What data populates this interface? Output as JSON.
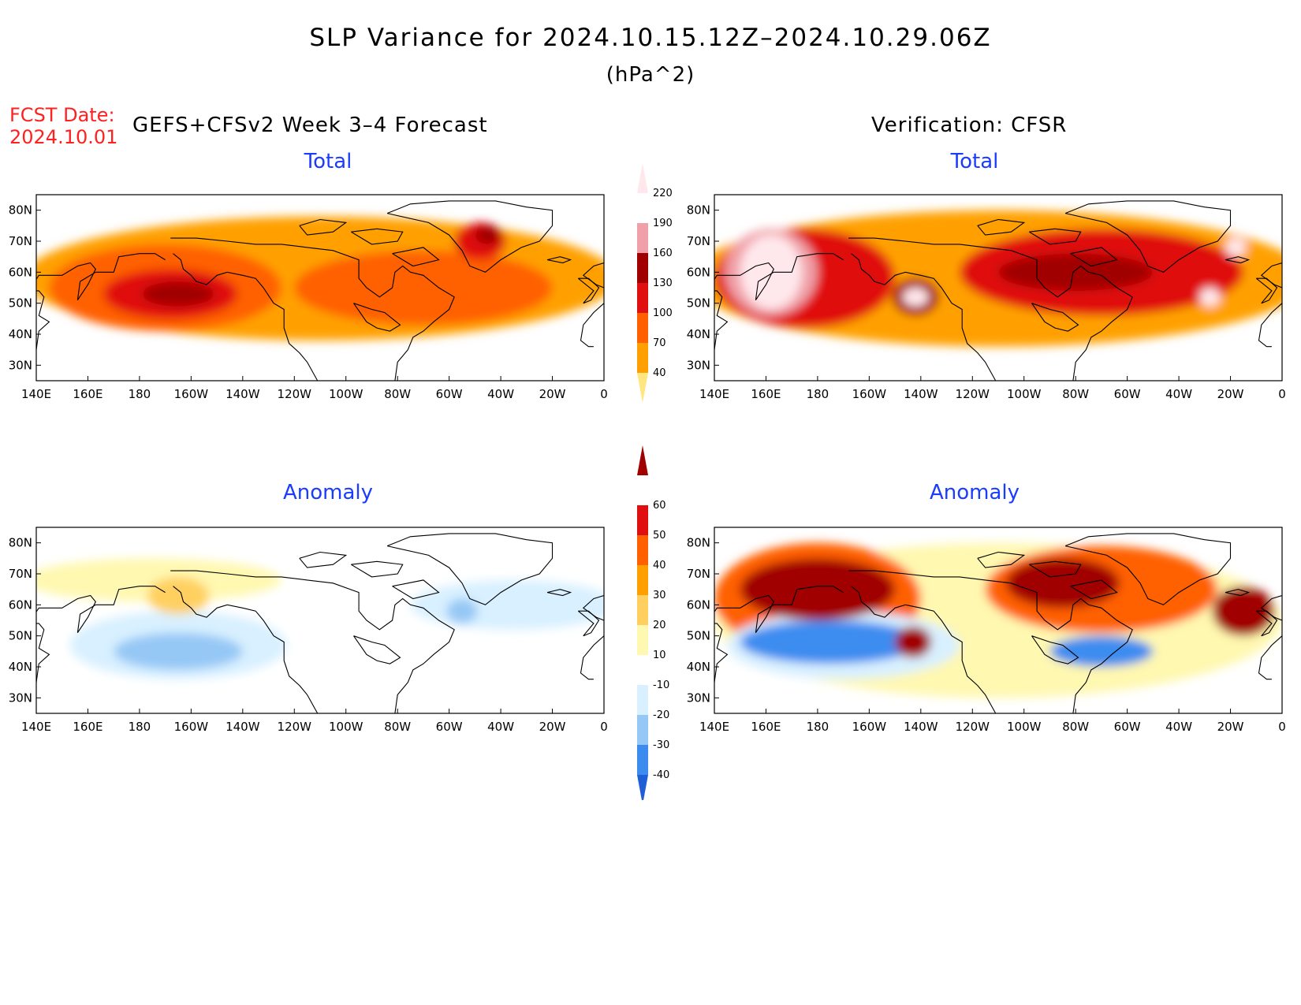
{
  "header": {
    "title": "SLP Variance for 2024.10.15.12Z–2024.10.29.06Z",
    "units": "(hPa^2)",
    "fcst_label": "FCST Date:",
    "fcst_date": "2024.10.01",
    "model_label": "GEFS+CFSv2 Week 3–4 Forecast",
    "verif_label": "Verification: CFSR"
  },
  "panels": {
    "fc_total": {
      "title": "Total"
    },
    "ver_total": {
      "title": "Total"
    },
    "fc_anom": {
      "title": "Anomaly"
    },
    "ver_anom": {
      "title": "Anomaly"
    }
  },
  "axes": {
    "x_ticks": [
      "140E",
      "160E",
      "180",
      "160W",
      "140W",
      "120W",
      "100W",
      "80W",
      "60W",
      "40W",
      "20W",
      "0"
    ],
    "y_ticks": [
      "30N",
      "40N",
      "50N",
      "60N",
      "70N",
      "80N"
    ],
    "lon_range": [
      140,
      360
    ],
    "lat_range": [
      25,
      85
    ]
  },
  "colorbar_total": {
    "labels": [
      "40",
      "70",
      "100",
      "130",
      "160",
      "190",
      "220"
    ],
    "colors": [
      "#ffe680",
      "#ffa000",
      "#ff6000",
      "#e01010",
      "#a00000",
      "#f0a0a8",
      "#ffe8ec"
    ]
  },
  "colorbar_anom": {
    "labels": [
      "-40",
      "-30",
      "-20",
      "-10",
      "10",
      "20",
      "30",
      "40",
      "50",
      "60"
    ],
    "colors": [
      "#1e5fd8",
      "#3c8cf0",
      "#96c8f5",
      "#d8f0ff",
      "#ffffff",
      "#fff8b0",
      "#ffd060",
      "#ffa000",
      "#ff6000",
      "#e01010",
      "#a00000"
    ]
  },
  "chart_data": [
    {
      "type": "heatmap",
      "panel": "GEFS+CFSv2 Total",
      "x_unit": "deg longitude east",
      "y_unit": "deg latitude",
      "features": [
        {
          "lon": 195,
          "lat": 53,
          "level": 160,
          "rx": 14,
          "ry": 4
        },
        {
          "lon": 192,
          "lat": 53,
          "level": 130,
          "rx": 26,
          "ry": 8
        },
        {
          "lon": 315,
          "lat": 72,
          "level": 160,
          "rx": 5,
          "ry": 3
        },
        {
          "lon": 312,
          "lat": 70,
          "level": 130,
          "rx": 10,
          "ry": 6
        },
        {
          "lon": 190,
          "lat": 55,
          "level": 100,
          "rx": 45,
          "ry": 14
        },
        {
          "lon": 290,
          "lat": 55,
          "level": 100,
          "rx": 50,
          "ry": 12
        },
        {
          "lon": 250,
          "lat": 58,
          "level": 70,
          "rx": 115,
          "ry": 20
        }
      ]
    },
    {
      "type": "heatmap",
      "panel": "CFSR Total",
      "x_unit": "deg longitude east",
      "y_unit": "deg latitude",
      "features": [
        {
          "lon": 162,
          "lat": 60,
          "level": 220,
          "rx": 12,
          "ry": 12
        },
        {
          "lon": 162,
          "lat": 60,
          "level": 190,
          "rx": 18,
          "ry": 14
        },
        {
          "lon": 218,
          "lat": 52,
          "level": 220,
          "rx": 5,
          "ry": 3
        },
        {
          "lon": 218,
          "lat": 52,
          "level": 160,
          "rx": 9,
          "ry": 6
        },
        {
          "lon": 332,
          "lat": 52,
          "level": 220,
          "rx": 4,
          "ry": 3
        },
        {
          "lon": 342,
          "lat": 68,
          "level": 220,
          "rx": 4,
          "ry": 3
        },
        {
          "lon": 280,
          "lat": 60,
          "level": 160,
          "rx": 30,
          "ry": 6
        },
        {
          "lon": 175,
          "lat": 58,
          "level": 130,
          "rx": 35,
          "ry": 16
        },
        {
          "lon": 290,
          "lat": 60,
          "level": 130,
          "rx": 55,
          "ry": 14
        },
        {
          "lon": 250,
          "lat": 58,
          "level": 70,
          "rx": 120,
          "ry": 22
        }
      ]
    },
    {
      "type": "heatmap",
      "panel": "GEFS+CFSv2 Anomaly",
      "x_unit": "deg longitude east",
      "y_unit": "deg latitude",
      "features": [
        {
          "lon": 195,
          "lat": 63,
          "level": 20,
          "rx": 12,
          "ry": 6
        },
        {
          "lon": 185,
          "lat": 68,
          "level": 10,
          "rx": 50,
          "ry": 7
        },
        {
          "lon": 195,
          "lat": 45,
          "level": -20,
          "rx": 25,
          "ry": 6
        },
        {
          "lon": 195,
          "lat": 47,
          "level": -10,
          "rx": 42,
          "ry": 11
        },
        {
          "lon": 305,
          "lat": 58,
          "level": -20,
          "rx": 6,
          "ry": 4
        },
        {
          "lon": 325,
          "lat": 60,
          "level": -10,
          "rx": 40,
          "ry": 8
        }
      ]
    },
    {
      "type": "heatmap",
      "panel": "CFSR Anomaly",
      "x_unit": "deg longitude east",
      "y_unit": "deg latitude",
      "features": [
        {
          "lon": 180,
          "lat": 65,
          "level": 60,
          "rx": 30,
          "ry": 10
        },
        {
          "lon": 275,
          "lat": 67,
          "level": 60,
          "rx": 22,
          "ry": 8
        },
        {
          "lon": 217,
          "lat": 48,
          "level": 60,
          "rx": 7,
          "ry": 5
        },
        {
          "lon": 345,
          "lat": 58,
          "level": 60,
          "rx": 12,
          "ry": 8
        },
        {
          "lon": 185,
          "lat": 48,
          "level": -30,
          "rx": 35,
          "ry": 7
        },
        {
          "lon": 290,
          "lat": 45,
          "level": -30,
          "rx": 20,
          "ry": 5
        },
        {
          "lon": 180,
          "lat": 62,
          "level": 40,
          "rx": 40,
          "ry": 18
        },
        {
          "lon": 290,
          "lat": 65,
          "level": 40,
          "rx": 45,
          "ry": 14
        },
        {
          "lon": 250,
          "lat": 55,
          "level": 10,
          "rx": 110,
          "ry": 25
        },
        {
          "lon": 190,
          "lat": 47,
          "level": -10,
          "rx": 45,
          "ry": 11
        }
      ]
    }
  ]
}
